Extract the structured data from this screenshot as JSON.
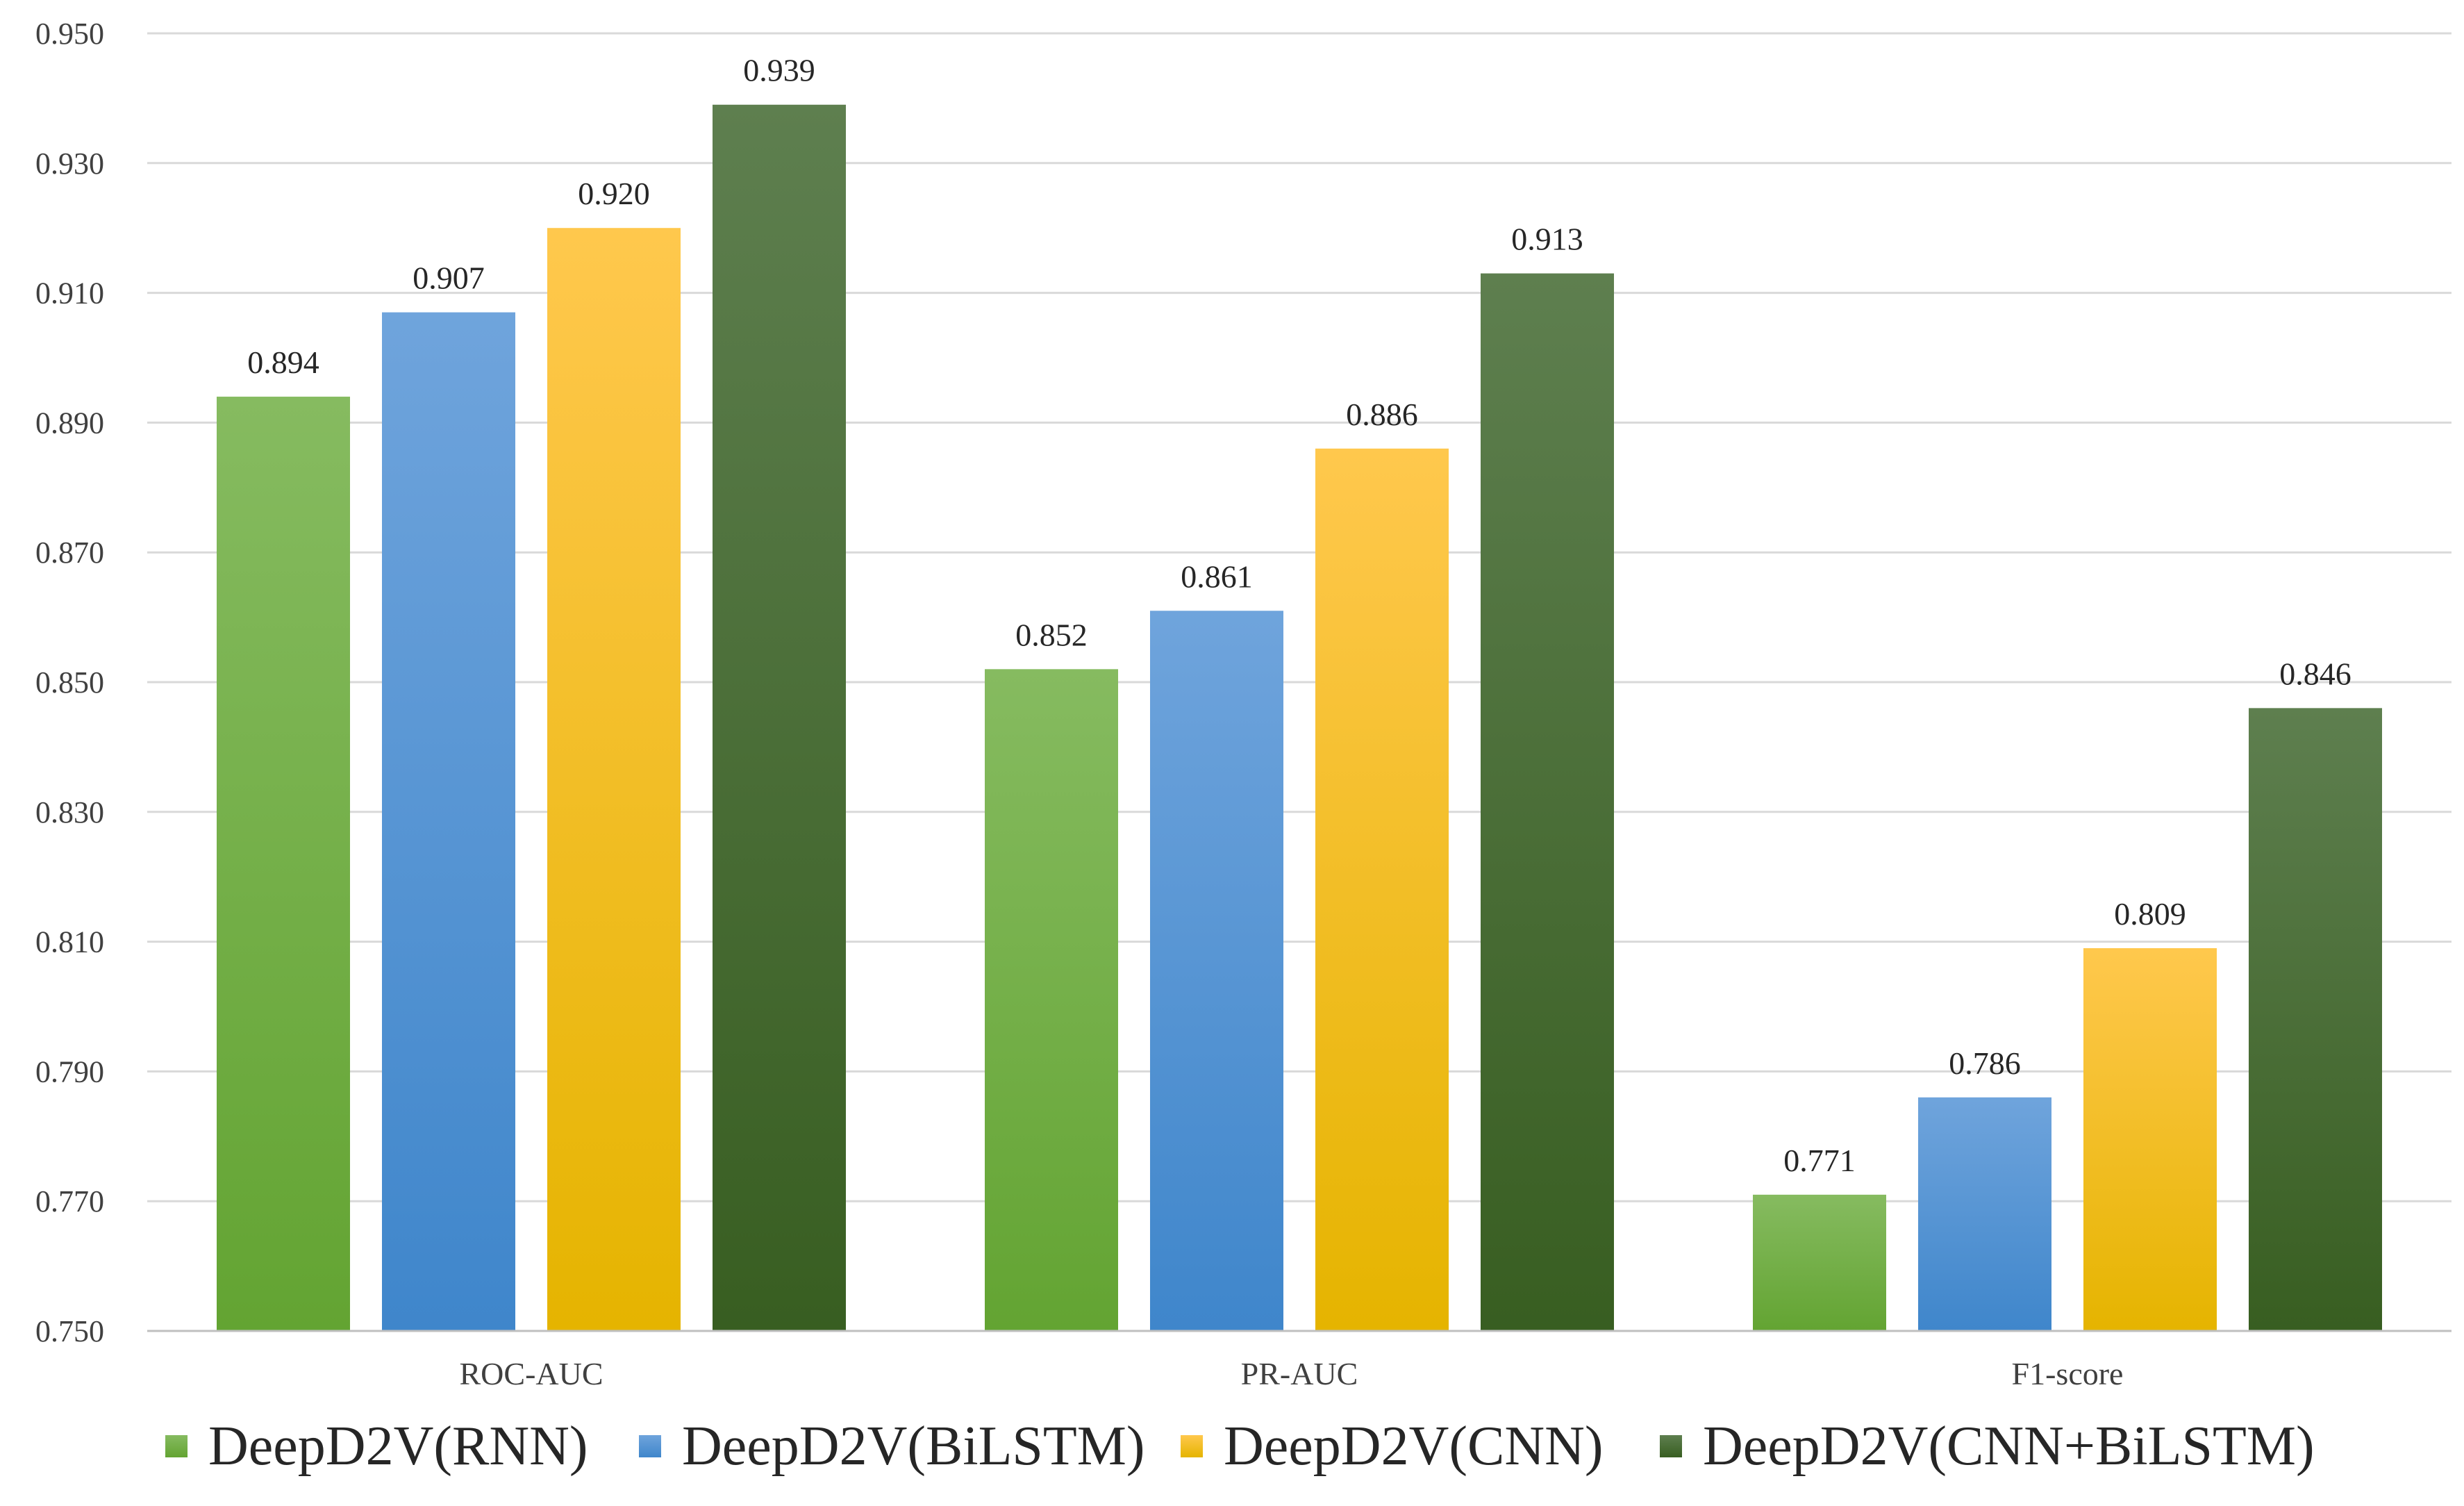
{
  "chart_data": {
    "type": "bar",
    "title": "",
    "xlabel": "",
    "ylabel": "",
    "categories": [
      "ROC-AUC",
      "PR-AUC",
      "F1-score"
    ],
    "ylim": [
      0.75,
      0.95
    ],
    "yticks": [
      "0.750",
      "0.770",
      "0.790",
      "0.810",
      "0.830",
      "0.850",
      "0.870",
      "0.890",
      "0.910",
      "0.930",
      "0.950"
    ],
    "grid": true,
    "legend_position": "bottom",
    "series": [
      {
        "name": "DeepD2V(RNN)",
        "values": [
          0.894,
          0.852,
          0.771
        ],
        "labels": [
          "0.894",
          "0.852",
          "0.771"
        ],
        "color_top": "#86bb60",
        "color_bottom": "#63a432"
      },
      {
        "name": "DeepD2V(BiLSTM)",
        "values": [
          0.907,
          0.861,
          0.786
        ],
        "labels": [
          "0.907",
          "0.861",
          "0.786"
        ],
        "color_top": "#6fa4dc",
        "color_bottom": "#3f86cb"
      },
      {
        "name": "DeepD2V(CNN)",
        "values": [
          0.92,
          0.886,
          0.809
        ],
        "labels": [
          "0.920",
          "0.886",
          "0.809"
        ],
        "color_top": "#ffc84d",
        "color_bottom": "#e5b400"
      },
      {
        "name": "DeepD2V(CNN+BiLSTM)",
        "values": [
          0.939,
          0.913,
          0.846
        ],
        "labels": [
          "0.939",
          "0.913",
          "0.846"
        ],
        "color_top": "#5e7f4f",
        "color_bottom": "#385e21"
      }
    ]
  }
}
